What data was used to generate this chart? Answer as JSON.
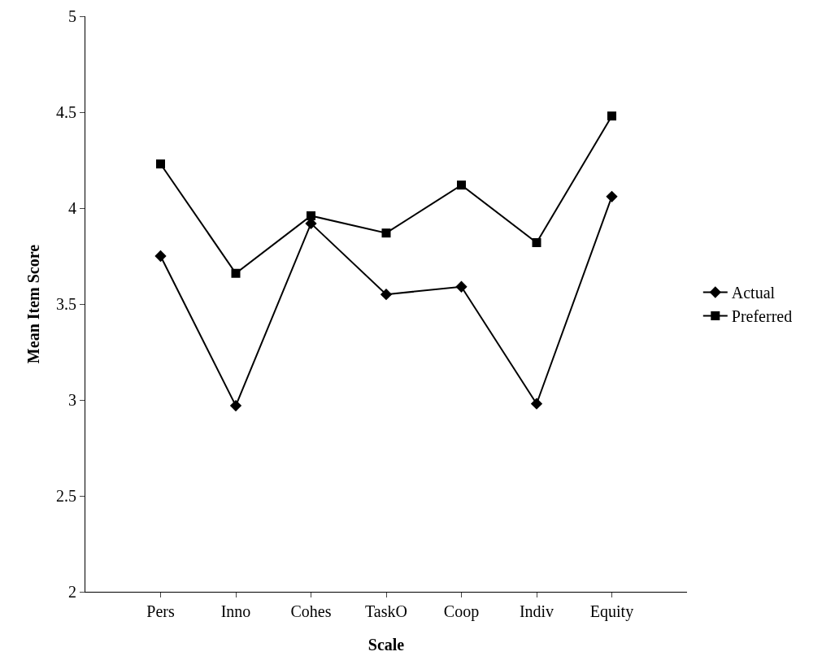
{
  "chart_data": {
    "type": "line",
    "xlabel": "Scale",
    "ylabel": "Mean Item Score",
    "categories": [
      "Pers",
      "Inno",
      "Cohes",
      "TaskO",
      "Coop",
      "Indiv",
      "Equity"
    ],
    "series": [
      {
        "name": "Actual",
        "color": "#000000",
        "marker": "diamond",
        "values": [
          3.75,
          2.97,
          3.92,
          3.55,
          3.59,
          2.98,
          4.06
        ]
      },
      {
        "name": "Preferred",
        "color": "#000000",
        "marker": "square",
        "values": [
          4.23,
          3.66,
          3.96,
          3.87,
          4.12,
          3.82,
          4.48
        ]
      }
    ],
    "ylim": [
      2,
      5
    ],
    "yticks": [
      2,
      2.5,
      3,
      3.5,
      4,
      4.5,
      5
    ],
    "grid": false,
    "legend": "right",
    "line_style": "solid"
  }
}
